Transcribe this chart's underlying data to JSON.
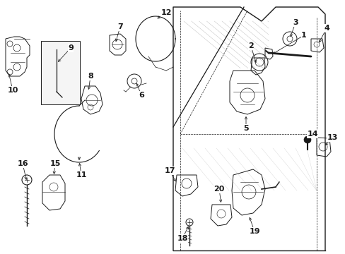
{
  "bg_color": "#ffffff",
  "fig_width": 4.89,
  "fig_height": 3.6,
  "dpi": 100,
  "lc": "#1a1a1a",
  "lw": 0.7,
  "fs": 7.5
}
